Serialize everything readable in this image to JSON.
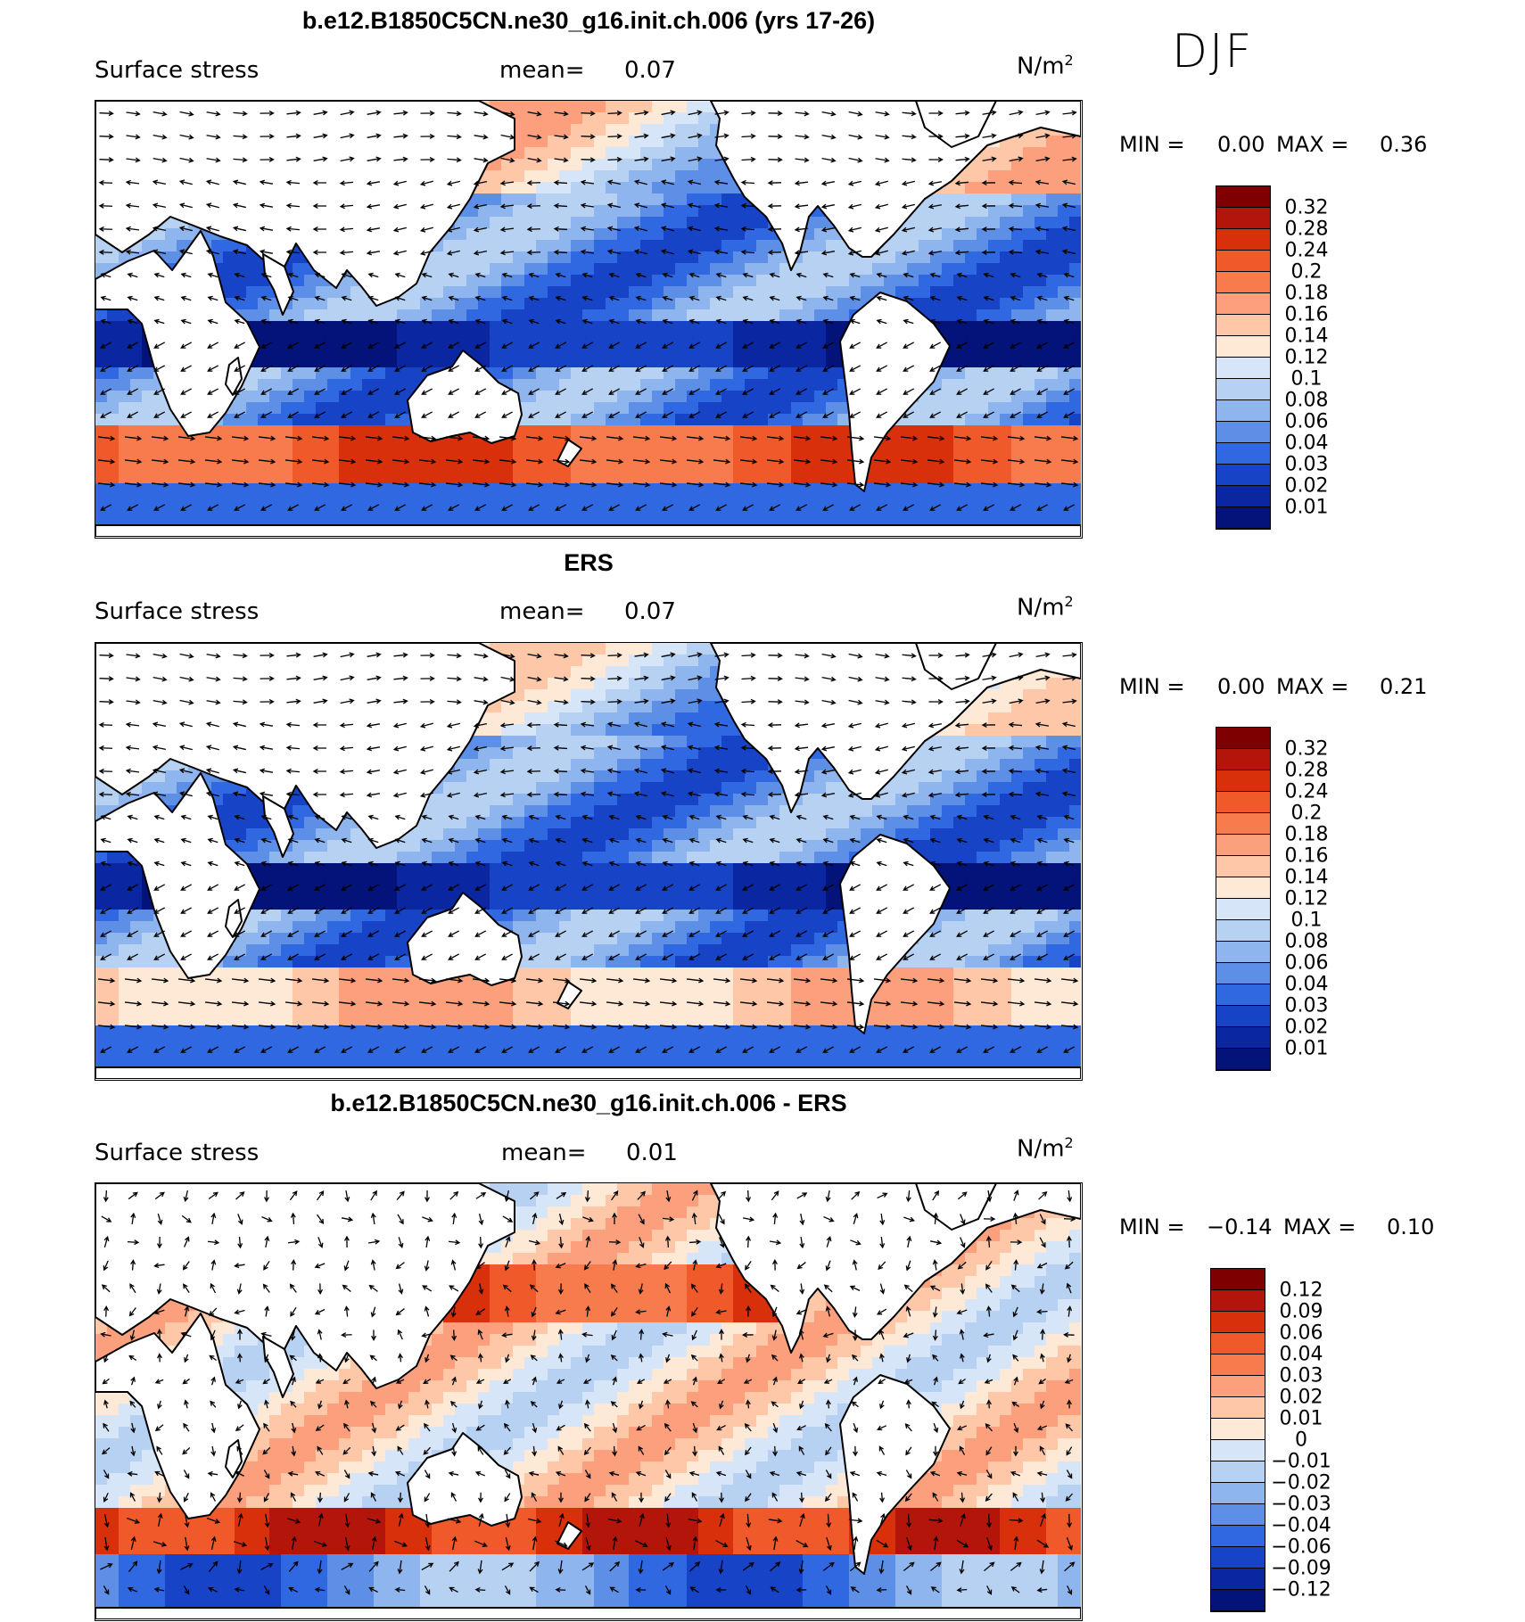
{
  "season": "DJF",
  "unit_base": "N/m",
  "unit_exp": "2",
  "panels": [
    {
      "title": "b.e12.B1850C5CN.ne30_g16.init.ch.006 (yrs 17-26)",
      "variable": "Surface stress",
      "mean_label": "mean=",
      "mean_value": "0.07",
      "min_label": "MIN =",
      "min_value": "0.00",
      "max_label": "MAX =",
      "max_value": "0.36",
      "colorbar": {
        "levels": [
          "0.32",
          "0.28",
          "0.24",
          "0.2",
          "0.18",
          "0.16",
          "0.14",
          "0.12",
          "0.1",
          "0.08",
          "0.06",
          "0.04",
          "0.03",
          "0.02",
          "0.01"
        ],
        "colors": [
          "#7f0000",
          "#b3150b",
          "#d7300a",
          "#f05a2a",
          "#f77b4c",
          "#fb9f7c",
          "#fdc7a8",
          "#fde9d6",
          "#d6e6f8",
          "#b7d1f3",
          "#8fb5ee",
          "#5e8fe6",
          "#2f68e0",
          "#1743c6",
          "#0a26a0",
          "#03137a"
        ]
      }
    },
    {
      "title": "ERS",
      "variable": "Surface stress",
      "mean_label": "mean=",
      "mean_value": "0.07",
      "min_label": "MIN =",
      "min_value": "0.00",
      "max_label": "MAX =",
      "max_value": "0.21",
      "colorbar": {
        "levels": [
          "0.32",
          "0.28",
          "0.24",
          "0.2",
          "0.18",
          "0.16",
          "0.14",
          "0.12",
          "0.1",
          "0.08",
          "0.06",
          "0.04",
          "0.03",
          "0.02",
          "0.01"
        ],
        "colors": [
          "#7f0000",
          "#b3150b",
          "#d7300a",
          "#f05a2a",
          "#f77b4c",
          "#fb9f7c",
          "#fdc7a8",
          "#fde9d6",
          "#d6e6f8",
          "#b7d1f3",
          "#8fb5ee",
          "#5e8fe6",
          "#2f68e0",
          "#1743c6",
          "#0a26a0",
          "#03137a"
        ]
      }
    },
    {
      "title": "b.e12.B1850C5CN.ne30_g16.init.ch.006 - ERS",
      "variable": "Surface stress",
      "mean_label": "mean=",
      "mean_value": "0.01",
      "min_label": "MIN =",
      "min_value": "−0.14",
      "max_label": "MAX =",
      "max_value": "0.10",
      "colorbar": {
        "levels": [
          "0.12",
          "0.09",
          "0.06",
          "0.04",
          "0.03",
          "0.02",
          "0.01",
          "0",
          "−0.01",
          "−0.02",
          "−0.03",
          "−0.04",
          "−0.06",
          "−0.09",
          "−0.12"
        ],
        "colors": [
          "#7f0000",
          "#b3150b",
          "#d7300a",
          "#f05a2a",
          "#f77b4c",
          "#fb9f7c",
          "#fdc7a8",
          "#fde9d6",
          "#d6e6f8",
          "#b7d1f3",
          "#8fb5ee",
          "#5e8fe6",
          "#2f68e0",
          "#1743c6",
          "#0a26a0",
          "#03137a"
        ]
      }
    }
  ]
}
